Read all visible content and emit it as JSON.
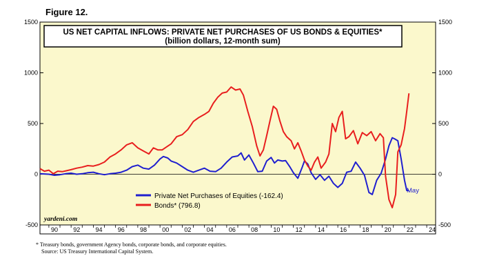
{
  "figure_label": "Figure 12.",
  "footnotes": [
    "*   Treasury bonds, government Agency bonds, corporate bonds, and corporate equities.",
    "    Source: US Treasury International Capital System."
  ],
  "colors": {
    "plot_bg": "#fbf8cc",
    "equities": "#1f1fcf",
    "bonds": "#e81e1e",
    "grid": "#000000"
  },
  "chart_data": {
    "type": "line",
    "title": "US NET CAPITAL INFLOWS: PRIVATE NET PURCHASES OF US BONDS & EQUITIES*",
    "subtitle": "(billion dollars, 12-month sum)",
    "credit": "yardeni.com",
    "ylim": [
      -500,
      1500
    ],
    "xlim": [
      1989.2,
      2024.8
    ],
    "yticks": [
      -500,
      0,
      500,
      1000,
      1500
    ],
    "xticks": [
      "90",
      "92",
      "94",
      "96",
      "98",
      "00",
      "02",
      "04",
      "06",
      "08",
      "10",
      "12",
      "14",
      "16",
      "18",
      "20",
      "22",
      "24"
    ],
    "legend_position": "bottom-center",
    "series": [
      {
        "name": "Private Net Purchases of Equities (-162.4)",
        "color": "#1f1fcf",
        "end_label": "May",
        "points": [
          [
            1989.2,
            5
          ],
          [
            1990,
            0
          ],
          [
            1990.5,
            -10
          ],
          [
            1991,
            -5
          ],
          [
            1991.5,
            5
          ],
          [
            1992,
            10
          ],
          [
            1992.5,
            0
          ],
          [
            1993,
            5
          ],
          [
            1993.5,
            15
          ],
          [
            1994,
            20
          ],
          [
            1994.5,
            5
          ],
          [
            1995,
            -5
          ],
          [
            1995.5,
            5
          ],
          [
            1996,
            10
          ],
          [
            1996.5,
            20
          ],
          [
            1997,
            40
          ],
          [
            1997.5,
            75
          ],
          [
            1998,
            90
          ],
          [
            1998.5,
            60
          ],
          [
            1999,
            50
          ],
          [
            1999.5,
            90
          ],
          [
            2000,
            150
          ],
          [
            2000.3,
            175
          ],
          [
            2000.7,
            160
          ],
          [
            2001,
            130
          ],
          [
            2001.5,
            110
          ],
          [
            2002,
            75
          ],
          [
            2002.5,
            40
          ],
          [
            2003,
            20
          ],
          [
            2003.5,
            40
          ],
          [
            2004,
            60
          ],
          [
            2004.5,
            30
          ],
          [
            2005,
            25
          ],
          [
            2005.5,
            60
          ],
          [
            2006,
            120
          ],
          [
            2006.5,
            170
          ],
          [
            2007,
            180
          ],
          [
            2007.3,
            210
          ],
          [
            2007.6,
            140
          ],
          [
            2008,
            190
          ],
          [
            2008.4,
            110
          ],
          [
            2008.8,
            25
          ],
          [
            2009.2,
            30
          ],
          [
            2009.6,
            130
          ],
          [
            2010,
            165
          ],
          [
            2010.3,
            110
          ],
          [
            2010.6,
            140
          ],
          [
            2011,
            130
          ],
          [
            2011.3,
            135
          ],
          [
            2011.7,
            70
          ],
          [
            2012,
            15
          ],
          [
            2012.4,
            -40
          ],
          [
            2012.8,
            70
          ],
          [
            2013,
            130
          ],
          [
            2013.3,
            100
          ],
          [
            2013.6,
            15
          ],
          [
            2014,
            -50
          ],
          [
            2014.4,
            -5
          ],
          [
            2014.8,
            -60
          ],
          [
            2015.2,
            -20
          ],
          [
            2015.6,
            -90
          ],
          [
            2016,
            -130
          ],
          [
            2016.4,
            -90
          ],
          [
            2016.8,
            20
          ],
          [
            2017.2,
            30
          ],
          [
            2017.6,
            120
          ],
          [
            2018,
            60
          ],
          [
            2018.4,
            -10
          ],
          [
            2018.8,
            -180
          ],
          [
            2019.1,
            -200
          ],
          [
            2019.5,
            -60
          ],
          [
            2019.9,
            10
          ],
          [
            2020.3,
            150
          ],
          [
            2020.6,
            280
          ],
          [
            2020.9,
            360
          ],
          [
            2021.1,
            350
          ],
          [
            2021.4,
            330
          ],
          [
            2021.7,
            150
          ],
          [
            2022.0,
            -60
          ],
          [
            2022.2,
            -160
          ],
          [
            2022.4,
            -162
          ]
        ]
      },
      {
        "name": "Bonds* (796.8)",
        "color": "#e81e1e",
        "points": [
          [
            1989.2,
            55
          ],
          [
            1989.6,
            30
          ],
          [
            1990,
            40
          ],
          [
            1990.4,
            5
          ],
          [
            1990.8,
            30
          ],
          [
            1991.2,
            25
          ],
          [
            1991.6,
            35
          ],
          [
            1992,
            45
          ],
          [
            1992.5,
            60
          ],
          [
            1993,
            70
          ],
          [
            1993.5,
            85
          ],
          [
            1994,
            80
          ],
          [
            1994.5,
            95
          ],
          [
            1995,
            120
          ],
          [
            1995.5,
            170
          ],
          [
            1996,
            200
          ],
          [
            1996.5,
            240
          ],
          [
            1997,
            290
          ],
          [
            1997.5,
            310
          ],
          [
            1998,
            260
          ],
          [
            1998.5,
            230
          ],
          [
            1999,
            200
          ],
          [
            1999.4,
            260
          ],
          [
            1999.8,
            240
          ],
          [
            2000.2,
            240
          ],
          [
            2000.6,
            270
          ],
          [
            2001,
            300
          ],
          [
            2001.5,
            370
          ],
          [
            2002,
            390
          ],
          [
            2002.5,
            440
          ],
          [
            2003,
            520
          ],
          [
            2003.5,
            560
          ],
          [
            2004,
            590
          ],
          [
            2004.4,
            620
          ],
          [
            2004.8,
            700
          ],
          [
            2005.2,
            760
          ],
          [
            2005.6,
            800
          ],
          [
            2006,
            810
          ],
          [
            2006.4,
            860
          ],
          [
            2006.8,
            830
          ],
          [
            2007.2,
            840
          ],
          [
            2007.5,
            780
          ],
          [
            2007.9,
            620
          ],
          [
            2008.3,
            470
          ],
          [
            2008.7,
            280
          ],
          [
            2009,
            180
          ],
          [
            2009.3,
            240
          ],
          [
            2009.6,
            380
          ],
          [
            2009.9,
            530
          ],
          [
            2010.2,
            670
          ],
          [
            2010.5,
            640
          ],
          [
            2010.8,
            520
          ],
          [
            2011.1,
            420
          ],
          [
            2011.4,
            370
          ],
          [
            2011.8,
            330
          ],
          [
            2012.1,
            250
          ],
          [
            2012.4,
            310
          ],
          [
            2012.7,
            230
          ],
          [
            2013,
            140
          ],
          [
            2013.3,
            80
          ],
          [
            2013.6,
            40
          ],
          [
            2013.9,
            120
          ],
          [
            2014.2,
            170
          ],
          [
            2014.5,
            60
          ],
          [
            2014.9,
            120
          ],
          [
            2015.2,
            200
          ],
          [
            2015.5,
            500
          ],
          [
            2015.8,
            420
          ],
          [
            2016.1,
            560
          ],
          [
            2016.4,
            620
          ],
          [
            2016.7,
            350
          ],
          [
            2017,
            370
          ],
          [
            2017.4,
            430
          ],
          [
            2017.8,
            300
          ],
          [
            2018.2,
            410
          ],
          [
            2018.6,
            380
          ],
          [
            2019,
            420
          ],
          [
            2019.4,
            330
          ],
          [
            2019.8,
            400
          ],
          [
            2020.1,
            360
          ],
          [
            2020.3,
            -20
          ],
          [
            2020.6,
            -250
          ],
          [
            2020.9,
            -330
          ],
          [
            2021.2,
            -200
          ],
          [
            2021.4,
            220
          ],
          [
            2021.7,
            290
          ],
          [
            2022.0,
            450
          ],
          [
            2022.2,
            620
          ],
          [
            2022.4,
            797
          ]
        ]
      }
    ]
  }
}
